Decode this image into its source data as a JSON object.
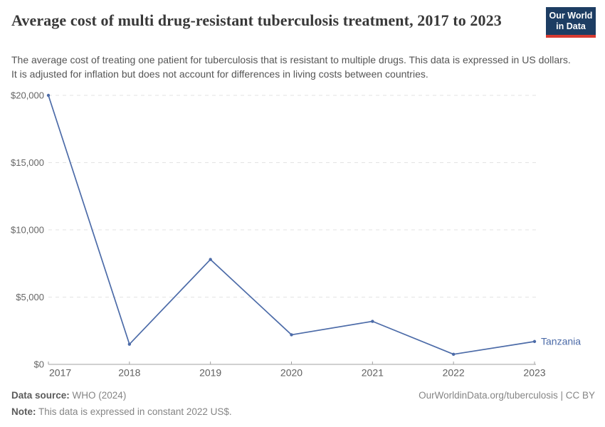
{
  "header": {
    "title": "Average cost of multi drug-resistant tuberculosis treatment, 2017 to 2023",
    "subtitle": "The average cost of treating one patient for tuberculosis that is resistant to multiple drugs. This data is expressed in US dollars. It is adjusted for inflation but does not account for differences in living costs between countries.",
    "logo": {
      "line1": "Our World",
      "line2": "in Data",
      "bg_color": "#1d3d63",
      "stripe_color": "#d73a31"
    }
  },
  "chart_data": {
    "type": "line",
    "title": "Average cost of multi drug-resistant tuberculosis treatment, 2017 to 2023",
    "x": [
      2017,
      2018,
      2019,
      2020,
      2021,
      2022,
      2023
    ],
    "x_tick_labels": [
      "2017",
      "2018",
      "2019",
      "2020",
      "2021",
      "2022",
      "2023"
    ],
    "series": [
      {
        "name": "Tanzania",
        "color": "#4c6ba8",
        "values": [
          20000,
          1500,
          7800,
          2200,
          3200,
          750,
          1700
        ]
      }
    ],
    "unit": "constant 2022 US$",
    "ylim": [
      0,
      20000
    ],
    "y_ticks": [
      {
        "value": 0,
        "label": "$0"
      },
      {
        "value": 5000,
        "label": "$5,000"
      },
      {
        "value": 10000,
        "label": "$10,000"
      },
      {
        "value": 15000,
        "label": "$15,000"
      },
      {
        "value": 20000,
        "label": "$20,000"
      }
    ],
    "grid": "horizontal-dashed",
    "gridline_color": "#e3e3e3",
    "axis_color": "#a0a0a0",
    "tick_label_color": "#666666",
    "legend": "end-of-line-label"
  },
  "footer": {
    "data_source_label": "Data source:",
    "data_source_value": "WHO (2024)",
    "note_label": "Note:",
    "note_value": "This data is expressed in constant 2022 US$.",
    "link": "OurWorldinData.org/tuberculosis | CC BY"
  }
}
